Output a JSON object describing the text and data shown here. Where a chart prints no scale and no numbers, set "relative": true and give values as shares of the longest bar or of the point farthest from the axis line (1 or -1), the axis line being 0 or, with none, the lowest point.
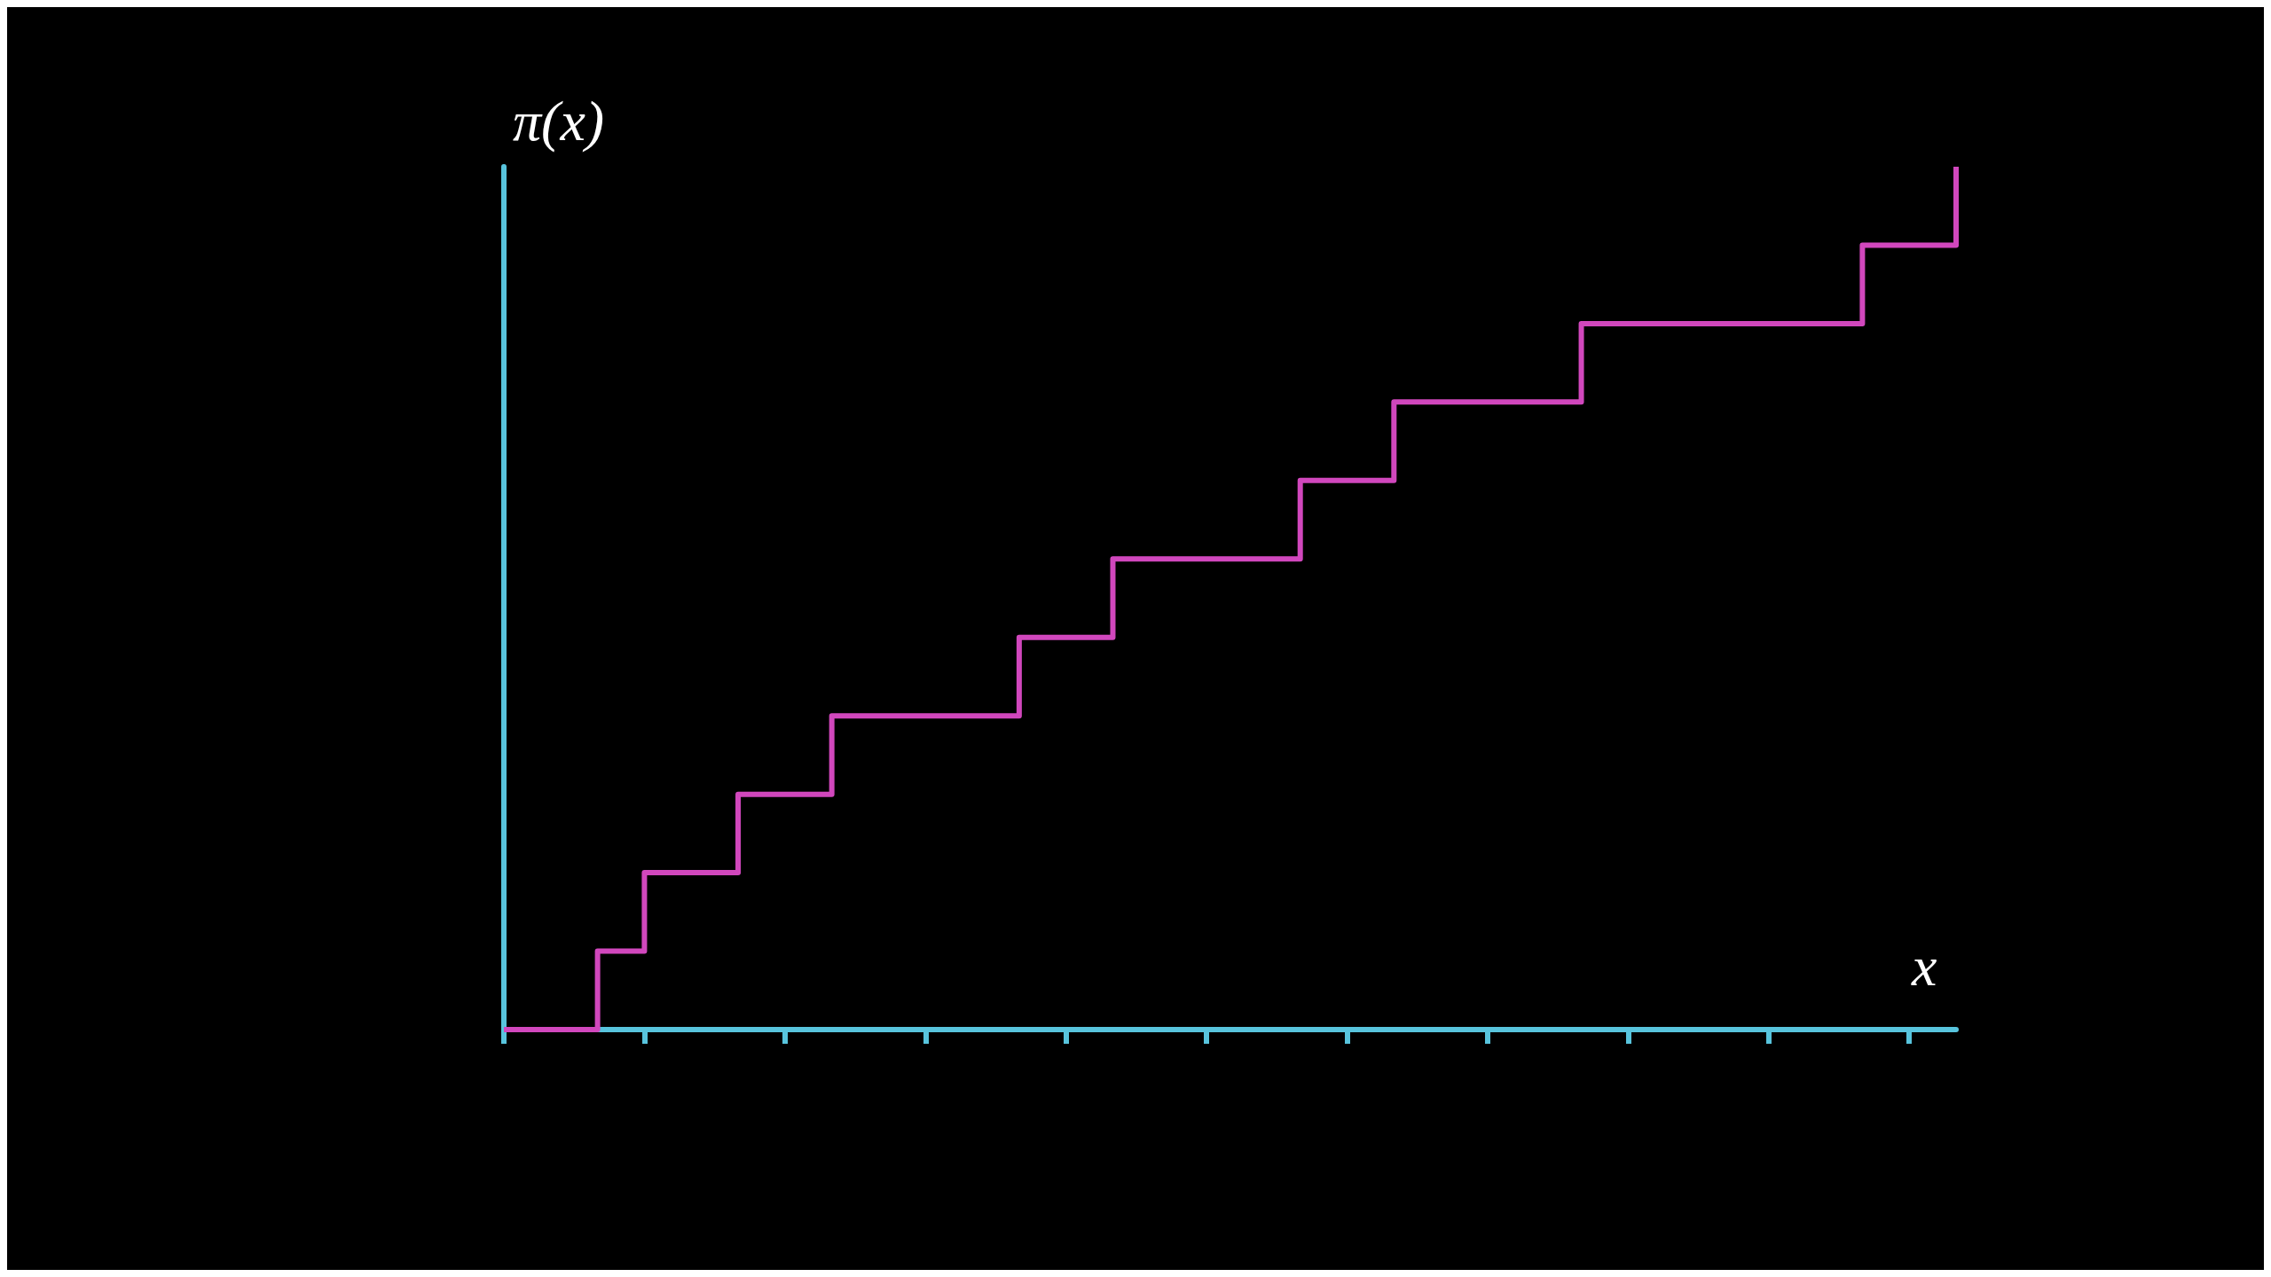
{
  "chart_data": {
    "type": "step",
    "xlabel": "x",
    "ylabel": "π(x)",
    "relative": true,
    "categories": [
      null,
      null,
      null,
      null,
      null,
      null,
      null,
      null,
      null,
      null,
      null,
      null,
      null,
      null,
      null,
      null,
      null,
      null,
      null,
      null,
      null,
      null,
      null,
      null,
      null,
      null,
      null,
      null,
      null,
      null,
      null,
      null
    ],
    "series": [
      {
        "color": "#d147bd",
        "values": [
          0,
          0,
          0.0909,
          0.1818,
          0.1818,
          0.2727,
          0.2727,
          0.3636,
          0.3636,
          0.3636,
          0.3636,
          0.4545,
          0.4545,
          0.5455,
          0.5455,
          0.5455,
          0.5455,
          0.6364,
          0.6364,
          0.7273,
          0.7273,
          0.7273,
          0.7273,
          0.8182,
          0.8182,
          0.8182,
          0.8182,
          0.8182,
          0.8182,
          0.9091,
          0.9091,
          1
        ]
      }
    ],
    "marker": "none",
    "grid": false
  }
}
